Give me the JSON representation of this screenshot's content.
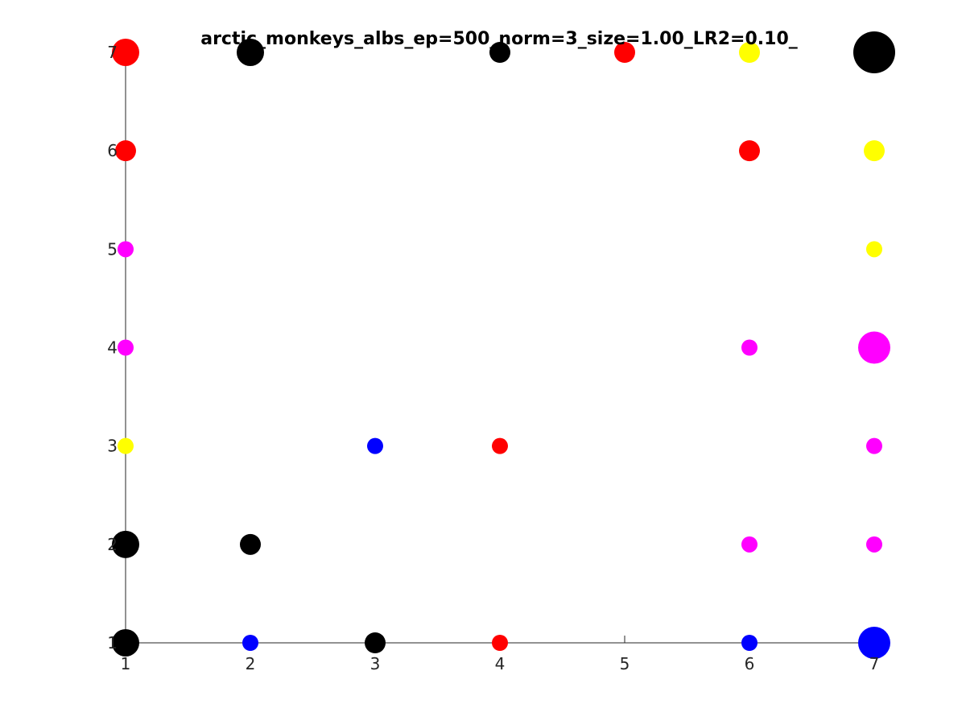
{
  "chart_data": {
    "type": "scatter",
    "title": "arctic_monkeys_albs_ep=500_norm=3_size=1.00_LR2=0.10_",
    "xlabel": "",
    "ylabel": "",
    "xlim": [
      1,
      7
    ],
    "ylim": [
      1,
      7
    ],
    "xticks": [
      1,
      2,
      3,
      4,
      5,
      6,
      7
    ],
    "yticks": [
      1,
      2,
      3,
      4,
      5,
      6,
      7
    ],
    "grid": false,
    "colors": {
      "black": "#000000",
      "red": "#ff0000",
      "yellow": "#ffff00",
      "magenta": "#ff00ff",
      "blue": "#0000ff"
    },
    "points": [
      {
        "x": 1,
        "y": 7,
        "color": "red",
        "size": 3
      },
      {
        "x": 2,
        "y": 7,
        "color": "black",
        "size": 3
      },
      {
        "x": 4,
        "y": 7,
        "color": "black",
        "size": 2
      },
      {
        "x": 5,
        "y": 7,
        "color": "red",
        "size": 2
      },
      {
        "x": 6,
        "y": 7,
        "color": "yellow",
        "size": 2
      },
      {
        "x": 7,
        "y": 7,
        "color": "black",
        "size": 6
      },
      {
        "x": 1,
        "y": 6,
        "color": "red",
        "size": 2
      },
      {
        "x": 6,
        "y": 6,
        "color": "red",
        "size": 2
      },
      {
        "x": 7,
        "y": 6,
        "color": "yellow",
        "size": 2
      },
      {
        "x": 1,
        "y": 5,
        "color": "magenta",
        "size": 1
      },
      {
        "x": 7,
        "y": 5,
        "color": "yellow",
        "size": 1
      },
      {
        "x": 1,
        "y": 4,
        "color": "magenta",
        "size": 1
      },
      {
        "x": 6,
        "y": 4,
        "color": "magenta",
        "size": 1
      },
      {
        "x": 7,
        "y": 4,
        "color": "magenta",
        "size": 4
      },
      {
        "x": 1,
        "y": 3,
        "color": "yellow",
        "size": 1
      },
      {
        "x": 3,
        "y": 3,
        "color": "blue",
        "size": 1
      },
      {
        "x": 4,
        "y": 3,
        "color": "red",
        "size": 1
      },
      {
        "x": 7,
        "y": 3,
        "color": "magenta",
        "size": 1
      },
      {
        "x": 1,
        "y": 2,
        "color": "black",
        "size": 3
      },
      {
        "x": 2,
        "y": 2,
        "color": "black",
        "size": 2
      },
      {
        "x": 6,
        "y": 2,
        "color": "magenta",
        "size": 1
      },
      {
        "x": 7,
        "y": 2,
        "color": "magenta",
        "size": 1
      },
      {
        "x": 1,
        "y": 1,
        "color": "black",
        "size": 3
      },
      {
        "x": 2,
        "y": 1,
        "color": "blue",
        "size": 1
      },
      {
        "x": 3,
        "y": 1,
        "color": "black",
        "size": 2
      },
      {
        "x": 4,
        "y": 1,
        "color": "red",
        "size": 1
      },
      {
        "x": 6,
        "y": 1,
        "color": "blue",
        "size": 1
      },
      {
        "x": 7,
        "y": 1,
        "color": "blue",
        "size": 4
      }
    ]
  }
}
